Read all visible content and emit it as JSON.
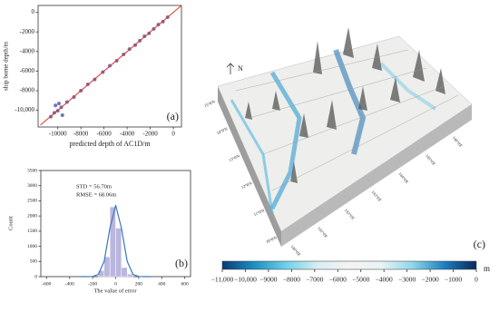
{
  "chart_data": [
    {
      "type": "scatter",
      "panel_label": "(a)",
      "x_label": "predicted depth of AC1D/m",
      "y_label": "ship borne depth/m",
      "color": "#33399a",
      "x": [
        -10600,
        -10300,
        -10000,
        -9700,
        -9200,
        -8600,
        -8000,
        -7400,
        -6800,
        -6100,
        -5500,
        -4900,
        -4300,
        -3800,
        -3300,
        -2900,
        -2500,
        -2100,
        -1700,
        -1300,
        -900,
        -500,
        -10200,
        -9900,
        -9600
      ],
      "values": [
        -10650,
        -10250,
        -10050,
        -9700,
        -9150,
        -8650,
        -8000,
        -7350,
        -6850,
        -6100,
        -5450,
        -4950,
        -4300,
        -3750,
        -3350,
        -2900,
        -2450,
        -2150,
        -1700,
        -1250,
        -950,
        -500,
        -9500,
        -9300,
        -10500
      ],
      "reference_line": {
        "color": "#e8302a",
        "x": [
          -11500,
          700
        ],
        "values": [
          -11500,
          700
        ]
      },
      "xlim": [
        -11700,
        700
      ],
      "ylim": [
        -11700,
        700
      ],
      "xticks": [
        {
          "value": -10000,
          "label": "-10000"
        },
        -8000,
        -6000,
        -4000,
        -2000,
        0
      ],
      "yticks": [
        0,
        -2000,
        -4000,
        -6000,
        -8000,
        {
          "value": -10000,
          "label": "-10,000"
        }
      ]
    },
    {
      "type": "histogram",
      "panel_label": "(b)",
      "x_label": "The value of error",
      "y_label": "Count",
      "annotations": [
        "STD = 56.70m",
        "RMSE = 68.06m"
      ],
      "color": "#b9b6e0",
      "bins": [
        -150,
        -100,
        -50,
        0,
        50,
        100,
        150
      ],
      "values": [
        200,
        650,
        2300,
        1600,
        300,
        80
      ],
      "curve": {
        "color": "#3a78b8",
        "x": [
          -300,
          -250,
          -200,
          -150,
          -100,
          -50,
          0,
          50,
          100,
          150,
          200,
          250,
          300
        ],
        "values": [
          0,
          0,
          5,
          74,
          504,
          1600,
          2350,
          1600,
          504,
          74,
          5,
          0,
          0
        ]
      },
      "xlim": [
        -650,
        650
      ],
      "ylim": [
        0,
        3500
      ],
      "xticks": [
        -600,
        -400,
        -200,
        0,
        200,
        400,
        600
      ],
      "yticks": [
        0,
        500,
        1000,
        1500,
        2000,
        2500,
        3000,
        3500
      ]
    },
    {
      "type": "surface",
      "panel_label": "(c)",
      "north_label": "N",
      "lat_labels": [
        "15°0'N",
        "14°0'N",
        "13°0'N",
        "12°0'N",
        "11°0'N",
        "10°0'N"
      ],
      "lon_labels": [
        "140°0'E",
        "141°0'E",
        "142°0'E",
        "143°0'E",
        "144°0'E",
        "145°0'E",
        "146°0'E"
      ],
      "colorbar_unit": "m",
      "colors": [
        "#0b3a78",
        "#1a8fc2",
        "#6fd0e8",
        "#d8eef2",
        "#f4f4f2",
        "#e8f4f6",
        "#8fd6ea",
        "#1b7fbf",
        "#0a2a5a"
      ],
      "xlim": [
        -11000,
        0
      ],
      "xticks": [
        {
          "value": -11000,
          "label": "−11,000"
        },
        {
          "value": -10000,
          "label": "−10,000"
        },
        {
          "value": -9000,
          "label": "−9000"
        },
        {
          "value": -8000,
          "label": "−8000"
        },
        {
          "value": -7000,
          "label": "−7000"
        },
        {
          "value": -6000,
          "label": "−6000"
        },
        {
          "value": -5000,
          "label": "−5000"
        },
        {
          "value": -4000,
          "label": "−4000"
        },
        {
          "value": -3000,
          "label": "−3000"
        },
        {
          "value": -2000,
          "label": "−2000"
        },
        {
          "value": -1000,
          "label": "−1000"
        },
        0
      ]
    }
  ]
}
